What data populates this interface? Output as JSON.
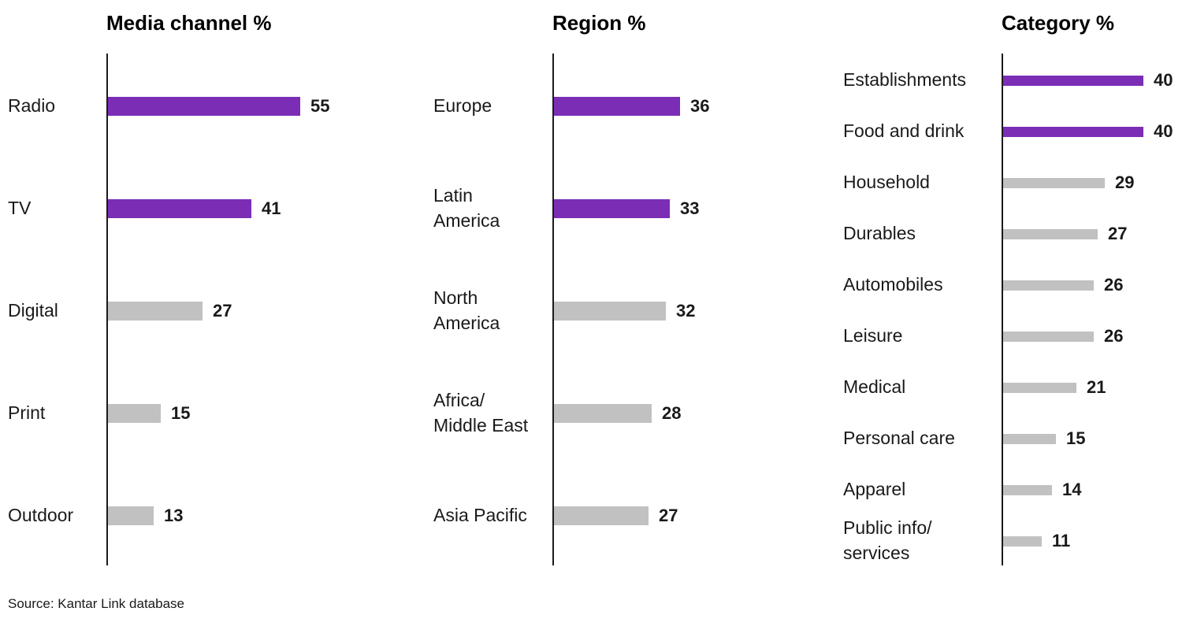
{
  "page": {
    "source": "Source: Kantar Link database"
  },
  "colors": {
    "accent": "#7C2DB6",
    "muted": "#C1C1C1",
    "axis": "#1A1A1A"
  },
  "chart_data": [
    {
      "type": "bar",
      "orientation": "horizontal",
      "title": "Media channel %",
      "categories": [
        "Radio",
        "TV",
        "Digital",
        "Print",
        "Outdoor"
      ],
      "values": [
        55,
        41,
        27,
        15,
        13
      ],
      "highlighted": [
        true,
        true,
        false,
        false,
        false
      ],
      "value_labels": "end",
      "grid": false,
      "xlim": [
        0,
        60
      ]
    },
    {
      "type": "bar",
      "orientation": "horizontal",
      "title": "Region %",
      "categories": [
        "Europe",
        "Latin\nAmerica",
        "North\nAmerica",
        "Africa/\nMiddle East",
        "Asia Pacific"
      ],
      "values": [
        36,
        33,
        32,
        28,
        27
      ],
      "highlighted": [
        true,
        true,
        false,
        false,
        false
      ],
      "value_labels": "end",
      "grid": false,
      "xlim": [
        0,
        60
      ]
    },
    {
      "type": "bar",
      "orientation": "horizontal",
      "title": "Category %",
      "categories": [
        "Establishments",
        "Food and drink",
        "Household",
        "Durables",
        "Automobiles",
        "Leisure",
        "Medical",
        "Personal care",
        "Apparel",
        "Public info/\nservices"
      ],
      "values": [
        40,
        40,
        29,
        27,
        26,
        26,
        21,
        15,
        14,
        11
      ],
      "highlighted": [
        true,
        true,
        false,
        false,
        false,
        false,
        false,
        false,
        false,
        false
      ],
      "value_labels": "end",
      "grid": false,
      "xlim": [
        0,
        60
      ]
    }
  ]
}
